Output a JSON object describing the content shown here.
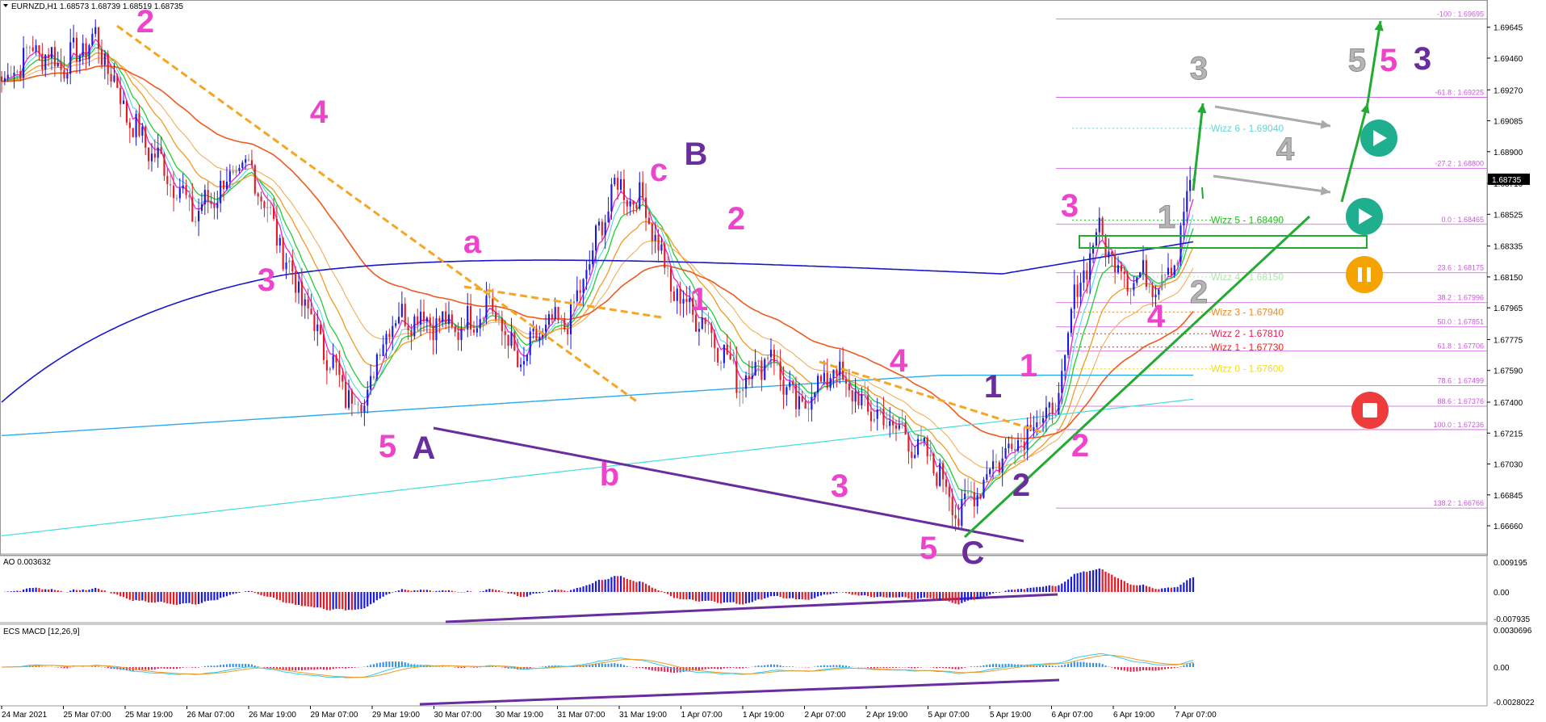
{
  "chart_data": {
    "type": "candlestick",
    "symbol_header": "EURNZD,H1  1.68573 1.68739 1.68519 1.68735",
    "current_price": "1.68735",
    "price_axis": {
      "ylim": [
        1.6652,
        1.6975
      ],
      "ticks": [
        "1.69645",
        "1.69460",
        "1.69270",
        "1.69085",
        "1.68900",
        "1.68710",
        "1.68525",
        "1.68335",
        "1.68150",
        "1.67965",
        "1.67775",
        "1.67590",
        "1.67400",
        "1.67215",
        "1.67030",
        "1.66845",
        "1.66660"
      ]
    },
    "time_axis": {
      "labels": [
        "24 Mar 2021",
        "25 Mar 07:00",
        "25 Mar 19:00",
        "26 Mar 07:00",
        "26 Mar 19:00",
        "29 Mar 07:00",
        "29 Mar 19:00",
        "30 Mar 07:00",
        "30 Mar 19:00",
        "31 Mar 07:00",
        "31 Mar 19:00",
        "1 Apr 07:00",
        "1 Apr 19:00",
        "2 Apr 07:00",
        "2 Apr 19:00",
        "5 Apr 07:00",
        "5 Apr 19:00",
        "6 Apr 07:00",
        "6 Apr 19:00",
        "7 Apr 07:00"
      ]
    },
    "path_anchors": [
      [
        0,
        1.6932
      ],
      [
        10,
        1.6952
      ],
      [
        20,
        1.6942
      ],
      [
        30,
        1.6958
      ],
      [
        42,
        1.6905
      ],
      [
        52,
        1.688
      ],
      [
        62,
        1.6852
      ],
      [
        72,
        1.6872
      ],
      [
        80,
        1.688
      ],
      [
        92,
        1.682
      ],
      [
        100,
        1.6785
      ],
      [
        110,
        1.6745
      ],
      [
        116,
        1.674
      ],
      [
        124,
        1.679
      ],
      [
        134,
        1.6792
      ],
      [
        146,
        1.6783
      ],
      [
        156,
        1.68
      ],
      [
        166,
        1.676
      ],
      [
        172,
        1.6782
      ],
      [
        182,
        1.679
      ],
      [
        196,
        1.687
      ],
      [
        206,
        1.6858
      ],
      [
        214,
        1.6808
      ],
      [
        226,
        1.6785
      ],
      [
        236,
        1.6752
      ],
      [
        246,
        1.677
      ],
      [
        254,
        1.6735
      ],
      [
        266,
        1.676
      ],
      [
        274,
        1.674
      ],
      [
        288,
        1.6722
      ],
      [
        300,
        1.6698
      ],
      [
        306,
        1.6672
      ],
      [
        316,
        1.67
      ],
      [
        328,
        1.6725
      ],
      [
        338,
        1.6738
      ],
      [
        342,
        1.6795
      ],
      [
        350,
        1.6842
      ],
      [
        360,
        1.6815
      ],
      [
        370,
        1.6813
      ],
      [
        376,
        1.683
      ],
      [
        380,
        1.6873
      ]
    ],
    "fibonacci": [
      {
        "label": "-100 : 1.69695",
        "value": 1.69695
      },
      {
        "label": "-61.8 : 1.69225",
        "value": 1.69225
      },
      {
        "label": "-27.2 : 1.68800",
        "value": 1.688
      },
      {
        "label": "0.0 : 1.68465",
        "value": 1.68465
      },
      {
        "label": "23.6 : 1.68175",
        "value": 1.68175
      },
      {
        "label": "38.2 : 1.67996",
        "value": 1.67996
      },
      {
        "label": "50.0 : 1.67851",
        "value": 1.67851
      },
      {
        "label": "61.8 : 1.67706",
        "value": 1.67706
      },
      {
        "label": "78.6 : 1.67499",
        "value": 1.67499
      },
      {
        "label": "88.6 : 1.67376",
        "value": 1.67376
      },
      {
        "label": "100.0 : 1.67236",
        "value": 1.67236
      },
      {
        "label": "138.2 : 1.66766",
        "value": 1.66766
      }
    ],
    "wizz_levels": [
      {
        "label": "Wizz 6 - 1.69040",
        "value": 1.6904,
        "color": "#66d4d4"
      },
      {
        "label": "Wizz 5 - 1.68490",
        "value": 1.6849,
        "color": "#22bb22"
      },
      {
        "label": "Wizz 4 - 1.68150",
        "value": 1.6815,
        "color": "#aee6ae"
      },
      {
        "label": "Wizz 3 - 1.67940",
        "value": 1.6794,
        "color": "#ee8a22"
      },
      {
        "label": "Wizz 2 - 1.67810",
        "value": 1.6781,
        "color": "#dd2255"
      },
      {
        "label": "Wizz 1 - 1.67730",
        "value": 1.6773,
        "color": "#ee2222"
      },
      {
        "label": "Wizz 0 - 1.67600",
        "value": 1.676,
        "color": "#eedd22"
      }
    ],
    "wave_labels": [
      {
        "text": "2",
        "color": "#ee44cc"
      },
      {
        "text": "3",
        "color": "#ee44cc"
      },
      {
        "text": "4",
        "color": "#ee44cc"
      },
      {
        "text": "a",
        "color": "#ee44cc"
      },
      {
        "text": "5",
        "color": "#ee44cc"
      },
      {
        "text": "A",
        "color": "#6a2d9e"
      },
      {
        "text": "b",
        "color": "#ee44cc"
      },
      {
        "text": "c",
        "color": "#ee44cc"
      },
      {
        "text": "B",
        "color": "#6a2d9e"
      },
      {
        "text": "2",
        "color": "#ee44cc"
      },
      {
        "text": "1",
        "color": "#ee44cc"
      },
      {
        "text": "4",
        "color": "#ee44cc"
      },
      {
        "text": "3",
        "color": "#ee44cc"
      },
      {
        "text": "5",
        "color": "#ee44cc"
      },
      {
        "text": "C",
        "color": "#6a2d9e"
      },
      {
        "text": "1",
        "color": "#6a2d9e"
      },
      {
        "text": "2",
        "color": "#6a2d9e"
      },
      {
        "text": "1",
        "color": "#ee44cc"
      },
      {
        "text": "2",
        "color": "#ee44cc"
      },
      {
        "text": "3",
        "color": "#ee44cc"
      },
      {
        "text": "4",
        "color": "#ee44cc"
      },
      {
        "text": "1",
        "color": "#b5b5b5"
      },
      {
        "text": "2",
        "color": "#b5b5b5"
      },
      {
        "text": "3",
        "color": "#b5b5b5"
      },
      {
        "text": "4",
        "color": "#b5b5b5"
      },
      {
        "text": "5",
        "color": "#b5b5b5"
      },
      {
        "text": "5",
        "color": "#ee44cc"
      },
      {
        "text": "3",
        "color": "#6a2d9e"
      }
    ],
    "ao": {
      "label": "AO 0.003632",
      "ticks": [
        "0.009195",
        "0.00",
        "-0.007935"
      ]
    },
    "macd": {
      "label": "ECS MACD [12,26,9]",
      "ticks": [
        "0.0030696",
        "0.00",
        "-0.0028022"
      ]
    },
    "colors": {
      "bull": "#1a1adb",
      "bear": "#e01b24",
      "neutral": "#8c8c8c",
      "fib": "#cc55dd",
      "trend": "#22aa33",
      "purple": "#6a2d9e",
      "orange_trend": "#f5a623"
    }
  }
}
